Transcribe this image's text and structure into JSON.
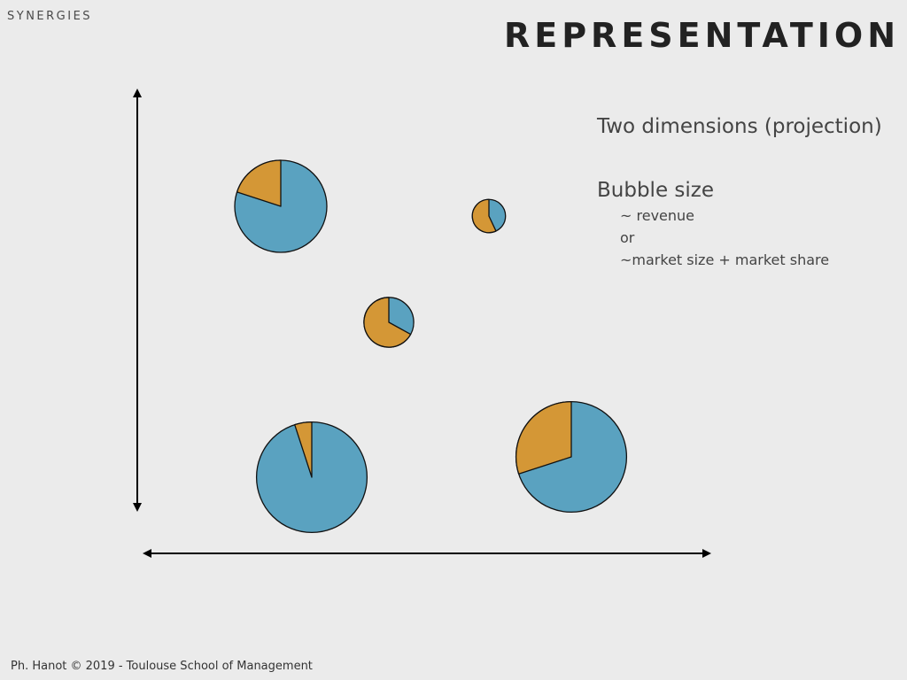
{
  "slide": {
    "section_label": "SYNERGIES",
    "title": "REPRESENTATION",
    "footer": "Ph. Hanot © 2019  -  Toulouse School of Management"
  },
  "notes": {
    "heading_1": "Two dimensions (projection)",
    "heading_2": "Bubble size",
    "lines": [
      "~ revenue",
      "or",
      "~market size + market share"
    ]
  },
  "diagram": {
    "type": "bubble-pie",
    "colors": {
      "blue": "#5aa2c0",
      "orange": "#d49736",
      "axis": "#000000",
      "outline": "#111111"
    },
    "bubbles": [
      {
        "id": "top-left",
        "relative_size": 1.0,
        "orange_share": 0.2
      },
      {
        "id": "top-right-small",
        "relative_size": 0.36,
        "orange_share": 0.57
      },
      {
        "id": "middle",
        "relative_size": 0.54,
        "orange_share": 0.67
      },
      {
        "id": "bottom-left",
        "relative_size": 1.2,
        "orange_share": 0.05
      },
      {
        "id": "bottom-right",
        "relative_size": 1.2,
        "orange_share": 0.3
      }
    ]
  }
}
